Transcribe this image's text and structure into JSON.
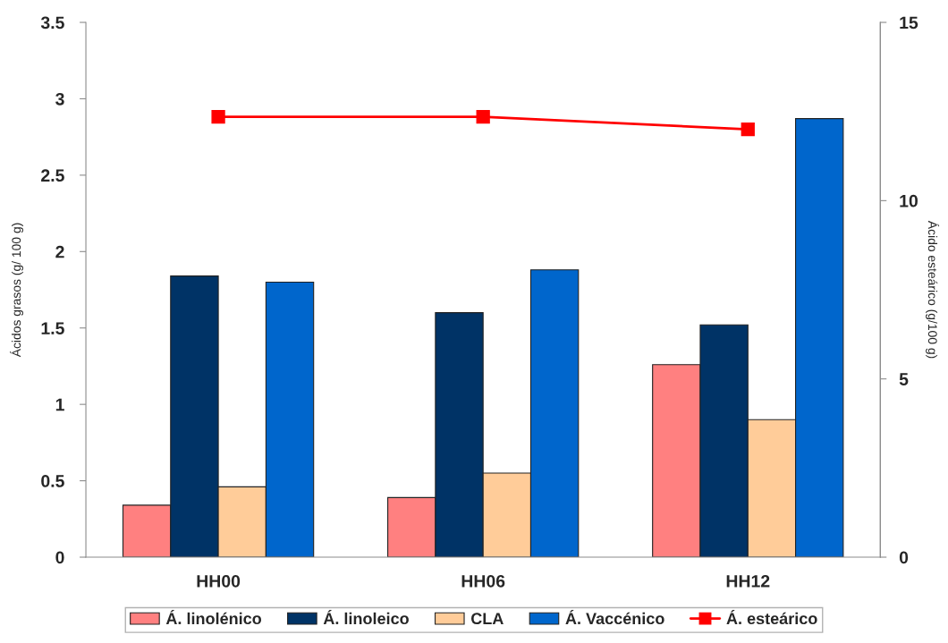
{
  "chart_data": {
    "type": "bar",
    "categories": [
      "HH00",
      "HH06",
      "HH12"
    ],
    "series": [
      {
        "name": "Á. linolénico",
        "color": "#ff8080",
        "values": [
          0.34,
          0.39,
          1.26
        ]
      },
      {
        "name": "Á. linoleico",
        "color": "#003366",
        "values": [
          1.84,
          1.6,
          1.52
        ]
      },
      {
        "name": "CLA",
        "color": "#ffcc99",
        "values": [
          0.46,
          0.55,
          0.9
        ]
      },
      {
        "name": "Á. Vaccénico",
        "color": "#0066cc",
        "values": [
          1.8,
          1.88,
          2.87
        ]
      },
      {
        "name": "Á. esteárico",
        "type": "line",
        "axis": "y2",
        "color": "#ff0000",
        "marker": "square",
        "values": [
          12.35,
          12.35,
          12.0
        ]
      }
    ],
    "ylabel": "Ácidos grasos (g/ 100 g)",
    "y2label": "Ácido esteárico (g/100 g)",
    "ylim": [
      0,
      3.5
    ],
    "yticks": [
      0,
      0.5,
      1,
      1.5,
      2,
      2.5,
      3,
      3.5
    ],
    "y2lim": [
      0,
      15
    ],
    "y2ticks": [
      0,
      5,
      10,
      15
    ],
    "legend": "bottom",
    "grid": false
  }
}
